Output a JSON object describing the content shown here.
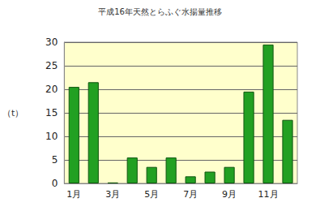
{
  "chart_data": {
    "type": "bar",
    "title": "平成16年天然とらふぐ水揚量推移",
    "y_label": "（t）",
    "categories": [
      "1月",
      null,
      "3月",
      null,
      "5月",
      null,
      "7月",
      null,
      "9月",
      null,
      "11月",
      null
    ],
    "values": [
      20.5,
      21.5,
      0.2,
      5.5,
      3.5,
      5.5,
      1.5,
      2.5,
      3.5,
      19.5,
      29.5,
      13.5
    ],
    "color": "#22a022",
    "ylim": [
      0,
      30
    ],
    "yticks": [
      0,
      5,
      10,
      15,
      20,
      25,
      30
    ],
    "grid": true
  }
}
